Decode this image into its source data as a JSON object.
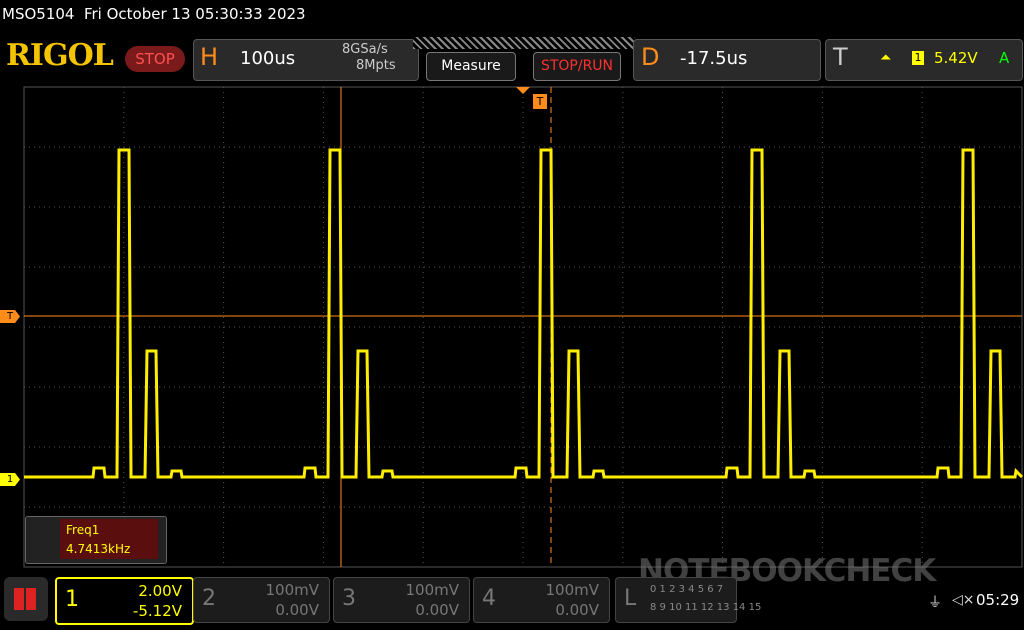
{
  "status_bar": {
    "model_datetime": "MSO5104  Fri October 13 05:30:33 2023"
  },
  "toolbar": {
    "logo": "RIGOL",
    "run_state": "STOP",
    "horizontal": {
      "label": "H",
      "timebase": "100us",
      "sample_rate": "8GSa/s",
      "memory_depth": "8Mpts"
    },
    "measure_button": "Measure",
    "stop_run_button": "STOP/RUN",
    "delay": {
      "label": "D",
      "value": "-17.5us"
    },
    "trigger": {
      "label": "T",
      "source": "1",
      "level": "5.42V",
      "mode": "A"
    }
  },
  "markers": {
    "trigger_level": "T",
    "channel1": "1",
    "trigger_position": "T"
  },
  "measurement": {
    "name": "Freq1",
    "value": "4.7413kHz"
  },
  "channels": [
    {
      "number": "1",
      "scale": "2.00V",
      "offset": "-5.12V"
    },
    {
      "number": "2",
      "scale": "100mV",
      "offset": "0.00V"
    },
    {
      "number": "3",
      "scale": "100mV",
      "offset": "0.00V"
    },
    {
      "number": "4",
      "scale": "100mV",
      "offset": "0.00V"
    }
  ],
  "logic": {
    "label": "L",
    "row1": "0 1 2 3 4 5 6 7",
    "row2": "8 9 10 11 12 13 14 15"
  },
  "clock": "05:29",
  "watermark": "NOTEBOOKCHECK"
}
